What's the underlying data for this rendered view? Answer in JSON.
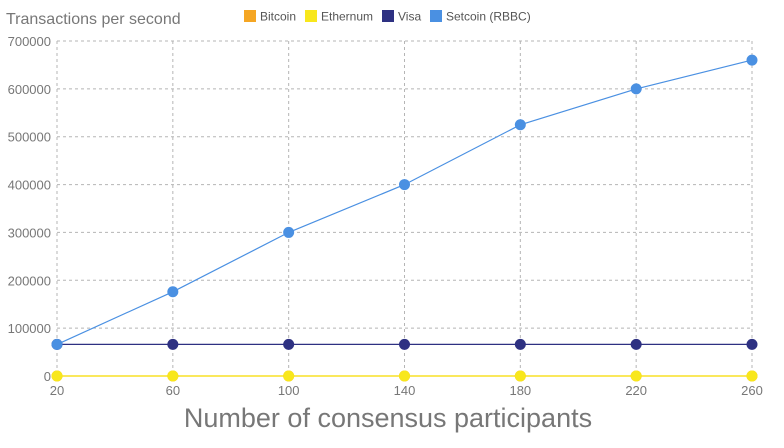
{
  "chart_data": {
    "type": "line",
    "ylabel": "Transactions per second",
    "xlabel": "Number of consensus participants",
    "x": [
      20,
      60,
      100,
      140,
      180,
      220,
      260
    ],
    "xlim": [
      20,
      260
    ],
    "ylim": [
      0,
      700000
    ],
    "yticks": [
      0,
      100000,
      200000,
      300000,
      400000,
      500000,
      600000,
      700000
    ],
    "grid": true,
    "legend_position": "top",
    "series": [
      {
        "name": "Bitcoin",
        "color": "#f5a623",
        "values": [
          7,
          7,
          7,
          7,
          7,
          7,
          7
        ]
      },
      {
        "name": "Ethernum",
        "color": "#f8e71c",
        "values": [
          15,
          15,
          15,
          15,
          15,
          15,
          15
        ]
      },
      {
        "name": "Visa",
        "color": "#2e3182",
        "values": [
          66000,
          66000,
          66000,
          66000,
          66000,
          66000,
          66000
        ]
      },
      {
        "name": "Setcoin (RBBC)",
        "color": "#4a90e2",
        "values": [
          66000,
          176000,
          300000,
          400000,
          525000,
          600000,
          660000
        ]
      }
    ]
  }
}
